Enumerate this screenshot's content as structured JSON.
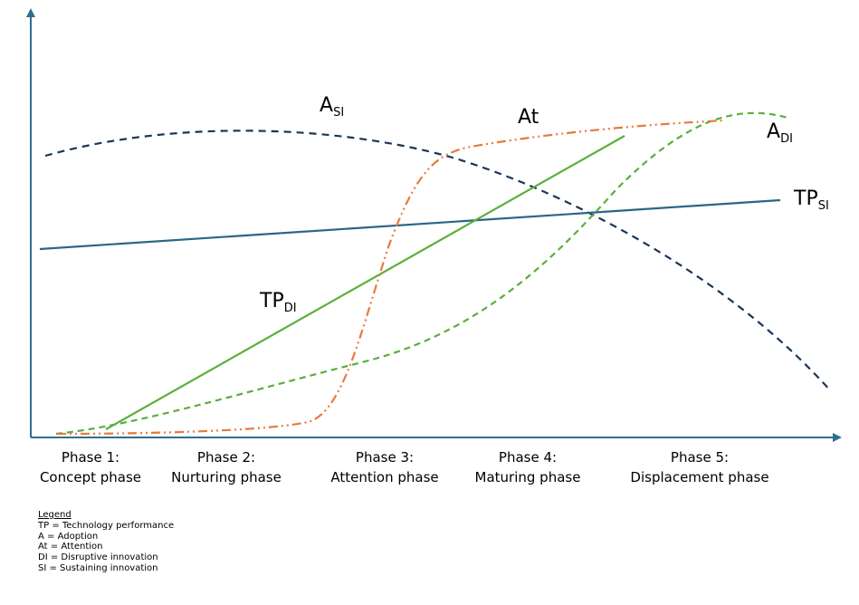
{
  "curve_labels": {
    "a_si": {
      "main": "A",
      "sub": "SI"
    },
    "at": {
      "main": "At",
      "sub": ""
    },
    "a_di": {
      "main": "A",
      "sub": "DI"
    },
    "tp_si": {
      "main": "TP",
      "sub": "SI"
    },
    "tp_di": {
      "main": "TP",
      "sub": "DI"
    }
  },
  "phases": [
    {
      "line1": "Phase 1:",
      "line2": "Concept phase"
    },
    {
      "line1": "Phase 2:",
      "line2": "Nurturing phase"
    },
    {
      "line1": "Phase 3:",
      "line2": "Attention phase"
    },
    {
      "line1": "Phase 4:",
      "line2": "Maturing phase"
    },
    {
      "line1": "Phase 5:",
      "line2": "Displacement phase"
    }
  ],
  "legend": {
    "title": "Legend",
    "items": [
      "TP = Technology performance",
      "A = Adoption",
      "At = Attention",
      "DI = Disruptive innovation",
      "SI = Sustaining innovation"
    ]
  },
  "colors": {
    "axis": "#2e6f8e",
    "a_si": "#1b3656",
    "tp_si": "#2b6686",
    "tp_di": "#5aaf3c",
    "a_di": "#5aaf3c",
    "at": "#e87a3c"
  },
  "line_styles": {
    "a_si": "dashed",
    "tp_si": "solid",
    "tp_di": "solid",
    "a_di": "dashed",
    "at": "dash-dot-dot"
  }
}
